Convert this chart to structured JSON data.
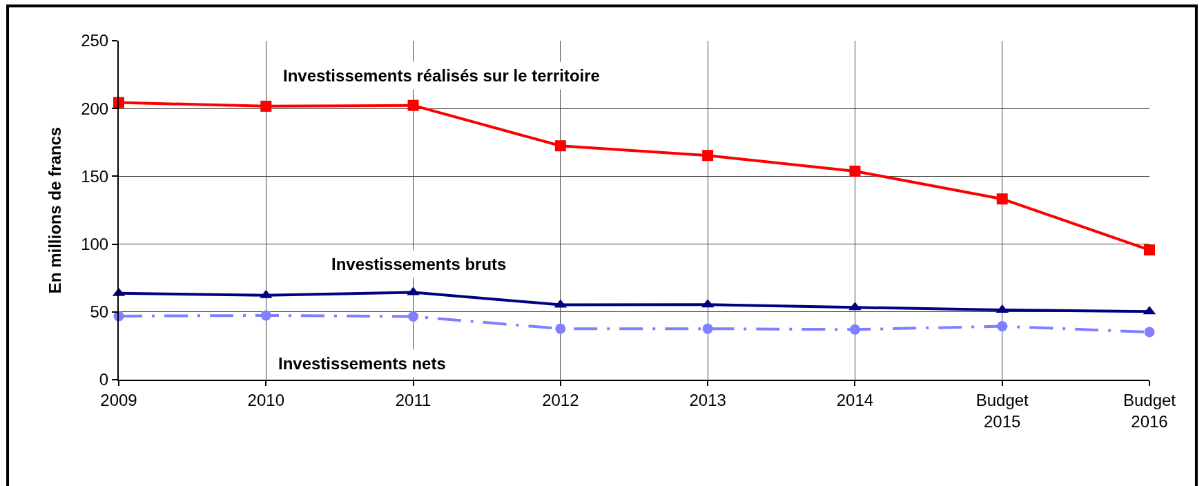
{
  "chart_data": {
    "type": "line",
    "categories": [
      "2009",
      "2010",
      "2011",
      "2012",
      "2013",
      "2014",
      "Budget 2015",
      "Budget 2016"
    ],
    "ylabel": "En millions de francs",
    "ylim": [
      0,
      250
    ],
    "yticks": [
      0,
      50,
      100,
      150,
      200,
      250
    ],
    "grid": true,
    "series": [
      {
        "name": "Investissements réalisés sur le territoire",
        "color": "#ff0000",
        "marker": "square",
        "line_style": "solid",
        "values": [
          204.4,
          201.7,
          202.3,
          172.5,
          165.4,
          153.8,
          133.3,
          95.7
        ]
      },
      {
        "name": "Investissements bruts",
        "color": "#000080",
        "marker": "triangle",
        "line_style": "solid",
        "values": [
          63.8,
          62.2,
          64.4,
          55.2,
          55.4,
          53.3,
          51.4,
          50.3
        ]
      },
      {
        "name": "Investissements nets",
        "color": "#8080ff",
        "marker": "circle",
        "line_style": "dashdot",
        "values": [
          46.9,
          47.4,
          46.6,
          37.6,
          37.6,
          37.0,
          39.4,
          35.1
        ]
      }
    ]
  }
}
